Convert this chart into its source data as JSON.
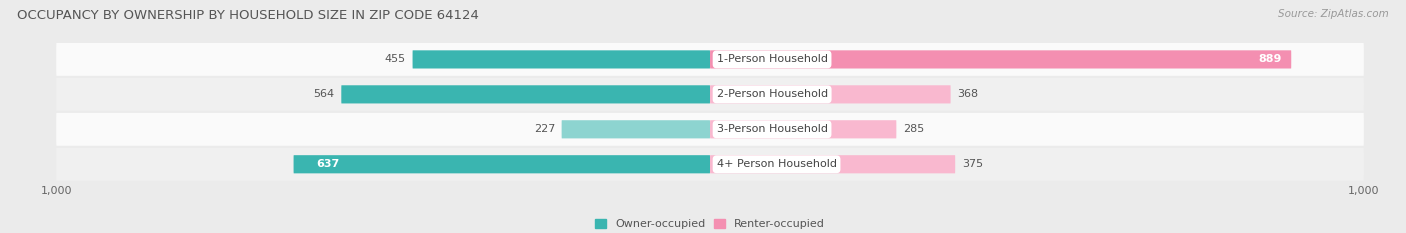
{
  "title": "OCCUPANCY BY OWNERSHIP BY HOUSEHOLD SIZE IN ZIP CODE 64124",
  "source": "Source: ZipAtlas.com",
  "categories": [
    "1-Person Household",
    "2-Person Household",
    "3-Person Household",
    "4+ Person Household"
  ],
  "owner_values": [
    455,
    564,
    227,
    637
  ],
  "renter_values": [
    889,
    368,
    285,
    375
  ],
  "owner_colors": [
    "#3ab5b0",
    "#3ab5b0",
    "#8dd4d0",
    "#3ab5b0"
  ],
  "renter_colors": [
    "#f48fb1",
    "#f9b8cf",
    "#f9b8cf",
    "#f9b8cf"
  ],
  "label_colors_owner": [
    "#555555",
    "#555555",
    "#555555",
    "#ffffff"
  ],
  "label_colors_renter": [
    "#ffffff",
    "#555555",
    "#555555",
    "#555555"
  ],
  "background_color": "#ebebeb",
  "row_colors": [
    "#fafafa",
    "#f0f0f0",
    "#fafafa",
    "#f0f0f0"
  ],
  "xlim": 1000,
  "title_fontsize": 9.5,
  "source_fontsize": 7.5,
  "label_fontsize": 8,
  "tick_fontsize": 8,
  "legend_fontsize": 8,
  "bar_height": 0.52
}
